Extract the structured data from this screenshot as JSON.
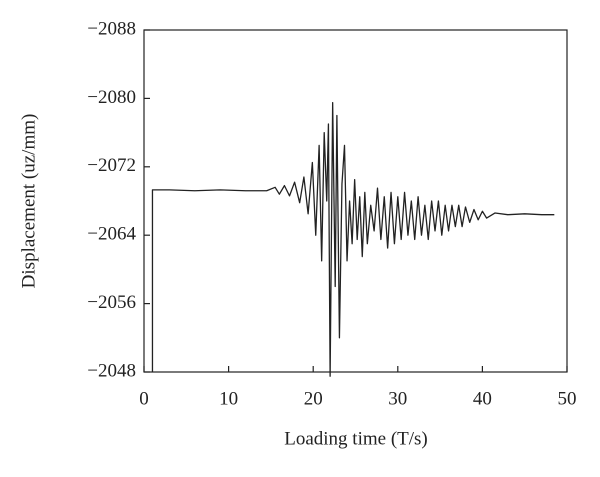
{
  "chart_data": {
    "type": "line",
    "x_label": "Loading time (T/s)",
    "y_label": "Displacement (uz/mm)",
    "xlim": [
      0,
      50
    ],
    "xticks": [
      0,
      10,
      20,
      30,
      40,
      50
    ],
    "ylim": [
      -2048,
      -2088
    ],
    "yticks": [
      {
        "value": -2088,
        "label": "−2088"
      },
      {
        "value": -2080,
        "label": "−2080"
      },
      {
        "value": -2072,
        "label": "−2072"
      },
      {
        "value": -2064,
        "label": "−2064"
      },
      {
        "value": -2056,
        "label": "−2056"
      },
      {
        "value": -2048,
        "label": "−2048"
      }
    ],
    "color": "#222222",
    "x": [
      1.0,
      1.0,
      3,
      6,
      9,
      12,
      14.5,
      15.5,
      16,
      16.6,
      17.2,
      17.8,
      18.4,
      18.9,
      19.4,
      19.9,
      20.3,
      20.7,
      21.0,
      21.3,
      21.6,
      21.8,
      22.0,
      22.3,
      22.6,
      22.8,
      23.1,
      23.4,
      23.7,
      24.0,
      24.3,
      24.6,
      24.9,
      25.2,
      25.5,
      25.8,
      26.1,
      26.4,
      26.8,
      27.2,
      27.6,
      28.0,
      28.4,
      28.8,
      29.2,
      29.6,
      30.0,
      30.4,
      30.8,
      31.2,
      31.6,
      32.0,
      32.4,
      32.8,
      33.2,
      33.6,
      34.0,
      34.4,
      34.8,
      35.2,
      35.6,
      36.0,
      36.4,
      36.8,
      37.2,
      37.6,
      38.0,
      38.5,
      39.0,
      39.5,
      40.0,
      40.5,
      41.5,
      43,
      45,
      47,
      48.5
    ],
    "values": [
      -2048,
      -2069.3,
      -2069.3,
      -2069.2,
      -2069.3,
      -2069.2,
      -2069.2,
      -2069.6,
      -2068.8,
      -2069.8,
      -2068.6,
      -2070.2,
      -2067.8,
      -2070.8,
      -2066.5,
      -2072.5,
      -2064,
      -2074.5,
      -2061,
      -2076,
      -2068,
      -2077,
      -2047.5,
      -2079.5,
      -2058,
      -2078,
      -2052,
      -2070,
      -2074.5,
      -2061,
      -2068,
      -2063,
      -2070.5,
      -2063.5,
      -2068.5,
      -2061.5,
      -2069,
      -2063,
      -2067.5,
      -2064.5,
      -2069.5,
      -2063.5,
      -2068.5,
      -2062.5,
      -2069,
      -2063,
      -2068.5,
      -2063.5,
      -2069,
      -2064,
      -2068,
      -2063.5,
      -2068.5,
      -2064,
      -2067.5,
      -2063.5,
      -2068,
      -2064.5,
      -2068,
      -2064,
      -2067.5,
      -2064.5,
      -2067.5,
      -2065,
      -2067.5,
      -2065,
      -2067.3,
      -2065.5,
      -2067,
      -2065.8,
      -2066.8,
      -2066,
      -2066.6,
      -2066.4,
      -2066.5,
      -2066.4,
      -2066.4
    ]
  }
}
